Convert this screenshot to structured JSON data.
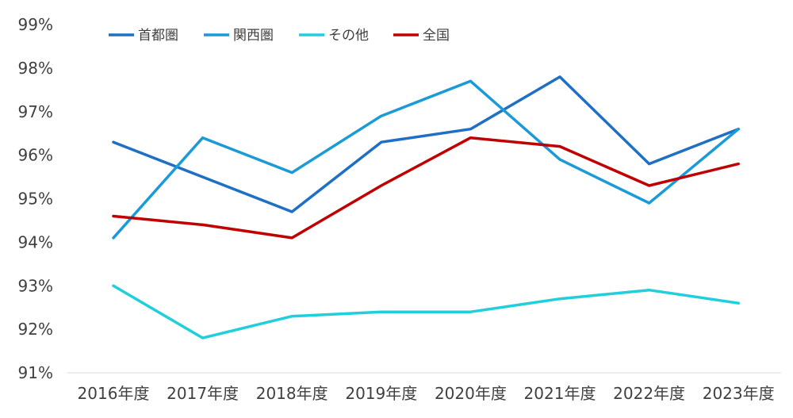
{
  "chart_data": {
    "type": "line",
    "title": "",
    "xlabel": "",
    "ylabel": "",
    "categories": [
      "2016年度",
      "2017年度",
      "2018年度",
      "2019年度",
      "2020年度",
      "2021年度",
      "2022年度",
      "2023年度"
    ],
    "ylim": [
      91,
      99
    ],
    "yticks": [
      91,
      92,
      93,
      94,
      95,
      96,
      97,
      98,
      99
    ],
    "ytick_labels": [
      "91%",
      "92%",
      "93%",
      "94%",
      "95%",
      "96%",
      "97%",
      "98%",
      "99%"
    ],
    "grid": false,
    "legend_position": "top-left",
    "series": [
      {
        "name": "首都圏",
        "color": "#1F6FC5",
        "values": [
          96.3,
          95.5,
          94.7,
          96.3,
          96.6,
          97.8,
          95.8,
          96.6
        ]
      },
      {
        "name": "関西圏",
        "color": "#1A9BD7",
        "values": [
          94.1,
          96.4,
          95.6,
          96.9,
          97.7,
          95.9,
          94.9,
          96.6
        ]
      },
      {
        "name": "その他",
        "color": "#1FCFDB",
        "values": [
          93.0,
          91.8,
          92.3,
          92.4,
          92.4,
          92.7,
          92.9,
          92.6
        ]
      },
      {
        "name": "全国",
        "color": "#C00000",
        "values": [
          94.6,
          94.4,
          94.1,
          95.3,
          96.4,
          96.2,
          95.3,
          95.8
        ]
      }
    ]
  }
}
